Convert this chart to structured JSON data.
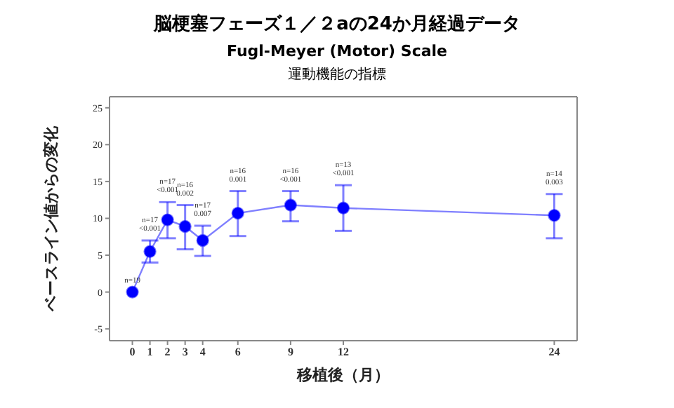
{
  "chart_data": {
    "type": "line",
    "title": "脳梗塞フェーズ１／２aの24か月経過データ",
    "subtitle": "Fugl-Meyer (Motor) Scale",
    "annotations": [
      "運動機能の指標",
      {
        "text": "n=19",
        "x": 0,
        "y": 0
      },
      {
        "text": "n=17\n<0.001",
        "x": 1,
        "y": 7.0
      },
      {
        "text": "n=17\n<0.001",
        "x": 2,
        "y": 12.2
      },
      {
        "text": "n=16\n0.002",
        "x": 3,
        "y": 11.8
      },
      {
        "text": "n=17\n0.007",
        "x": 4,
        "y": 9.0
      },
      {
        "text": "n=16\n0.001",
        "x": 6,
        "y": 13.7
      },
      {
        "text": "n=16\n<0.001",
        "x": 9,
        "y": 13.7
      },
      {
        "text": "n=13\n<0.001",
        "x": 12,
        "y": 14.5
      },
      {
        "text": "n=14\n0.003",
        "x": 24,
        "y": 13.3
      }
    ],
    "xlabel": "移植後（月）",
    "ylabel": "ベースライン値からの変化",
    "x": [
      0,
      1,
      2,
      3,
      4,
      6,
      9,
      12,
      24
    ],
    "series": [
      {
        "color": "#0000ff",
        "values": [
          0,
          5.5,
          9.8,
          8.9,
          7.0,
          10.7,
          11.8,
          11.4,
          10.4
        ],
        "errors": [
          null,
          [
            4.0,
            7.0
          ],
          [
            7.3,
            12.2
          ],
          [
            5.8,
            11.8
          ],
          [
            4.9,
            9.0
          ],
          [
            7.6,
            13.7
          ],
          [
            9.6,
            13.7
          ],
          [
            8.3,
            14.5
          ],
          [
            7.3,
            13.3
          ]
        ]
      }
    ],
    "xlim": [
      -1.3,
      25.3
    ],
    "xticks": [
      0,
      1,
      2,
      3,
      4,
      6,
      9,
      12,
      24
    ],
    "ylim": [
      -6.6,
      26.5
    ],
    "yticks": [
      -5,
      0,
      5,
      10,
      15,
      20,
      25
    ],
    "marker": "circle"
  }
}
